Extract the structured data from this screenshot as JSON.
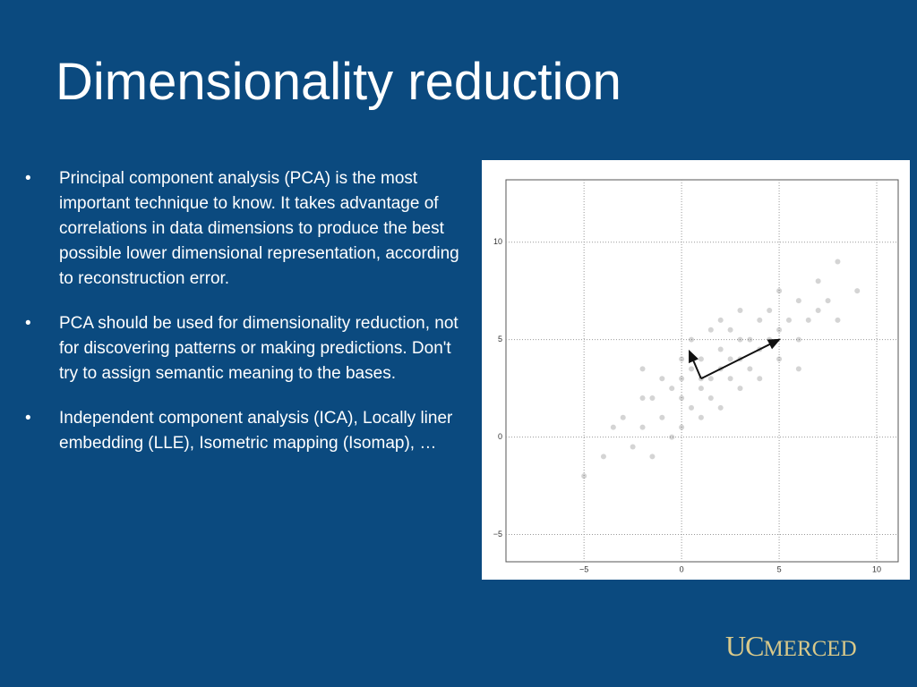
{
  "title": "Dimensionality reduction",
  "bullets": [
    "Principal component analysis (PCA) is the most important technique to know.  It takes advantage of correlations in data dimensions to produce the best possible lower dimensional representation, according to reconstruction error.",
    "PCA should be used for dimensionality reduction, not for discovering patterns or making predictions. Don't try to assign semantic meaning to the bases.",
    "Independent component analysis (ICA), Locally liner embedding (LLE), Isometric mapping (Isomap), …"
  ],
  "logo": {
    "uc": "UC",
    "merced": "MERCED"
  },
  "chart_data": {
    "type": "scatter",
    "color": "#555555",
    "grid": true,
    "xlim": [
      -9,
      11.1
    ],
    "ylim": [
      -6.4,
      13.2
    ],
    "xticks": [
      {
        "value": -5,
        "label": "−5"
      },
      0,
      5,
      10
    ],
    "yticks": [
      {
        "value": -5,
        "label": "−5"
      },
      0,
      5,
      10
    ],
    "x": [
      -3,
      -2,
      -1.5,
      -1,
      -0.5,
      0,
      0,
      0.5,
      0.5,
      1,
      1,
      1,
      1.5,
      1.5,
      2,
      2,
      2.5,
      2.5,
      3,
      3,
      3.5,
      3.5,
      4,
      4,
      4.5,
      5,
      5,
      5.5,
      6,
      6,
      6.5,
      7,
      7.5,
      8,
      -4,
      -3.5,
      -2.5,
      -2,
      -1,
      -0.5,
      0,
      0.5,
      2,
      2,
      3,
      4,
      7,
      8,
      -5,
      9,
      1.5,
      -1.5,
      3,
      5,
      0,
      6,
      -2,
      1,
      2.5,
      4.5
    ],
    "y": [
      1,
      0.5,
      2,
      1,
      2.5,
      2,
      3,
      1.5,
      3.5,
      2.5,
      3,
      4,
      3,
      2,
      3.5,
      4.5,
      3,
      4,
      4,
      5,
      3.5,
      5,
      4.5,
      6,
      5,
      5.5,
      4,
      6,
      5,
      7,
      6,
      6.5,
      7,
      6,
      -1,
      0.5,
      -0.5,
      2,
      3,
      0,
      4,
      5,
      1.5,
      6,
      2.5,
      3,
      8,
      9,
      -2,
      7.5,
      5.5,
      -1,
      6.5,
      7.5,
      0.5,
      3.5,
      3.5,
      1,
      5.5,
      6.5
    ],
    "components": [
      {
        "x": [
          1,
          5
        ],
        "y": [
          3,
          5
        ]
      },
      {
        "x": [
          1,
          0.4
        ],
        "y": [
          3,
          4.4
        ]
      }
    ]
  }
}
